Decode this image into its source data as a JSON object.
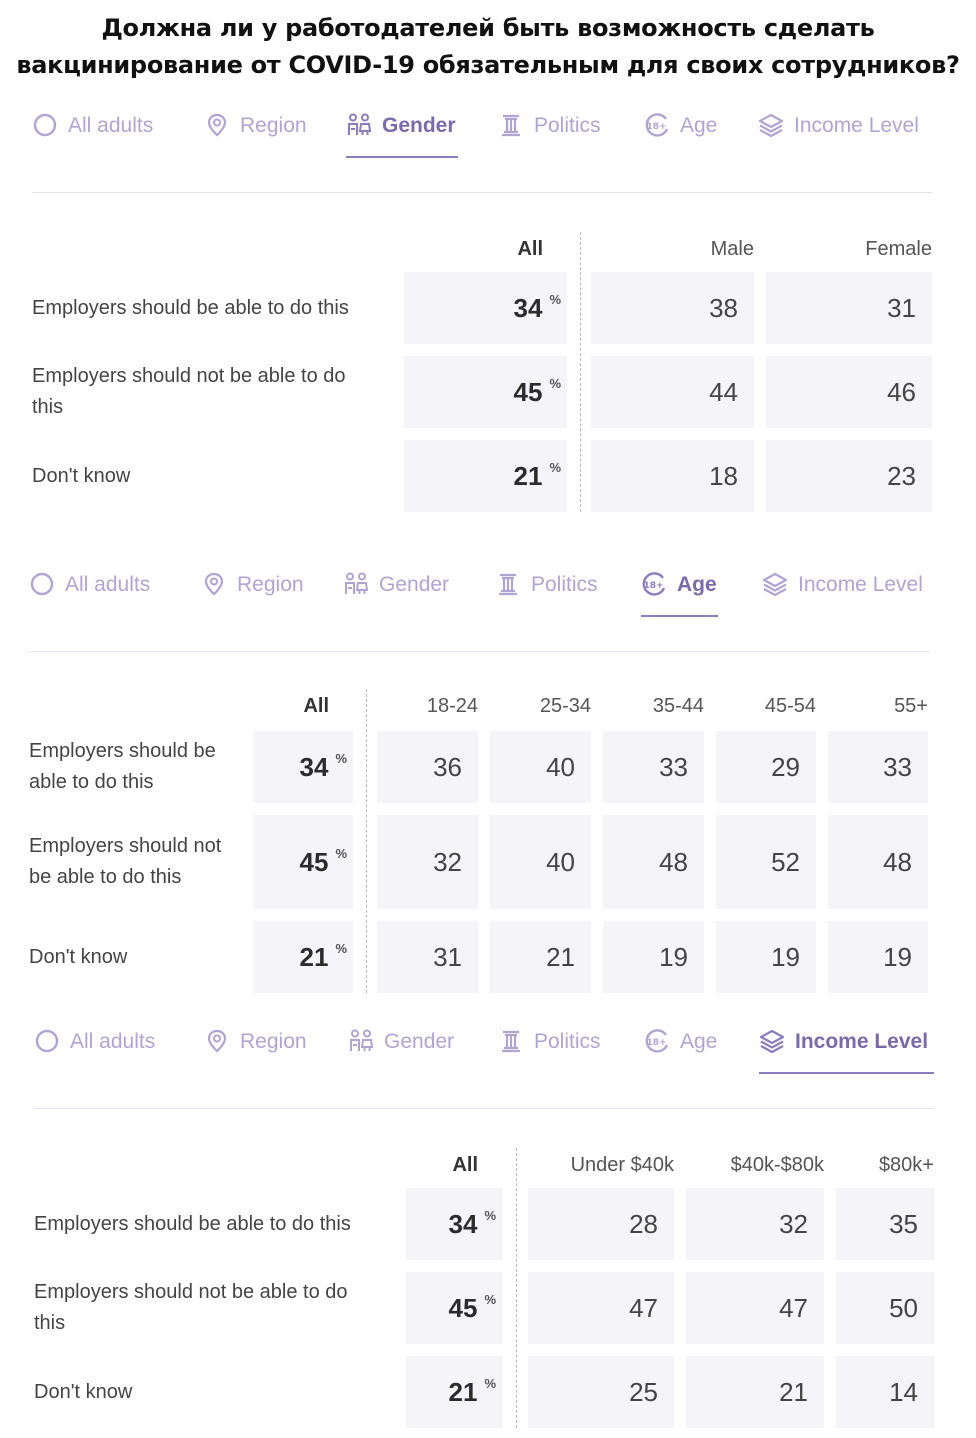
{
  "title_line1": "Должна ли у работодателей быть возможность сделать",
  "title_line2": "вакцинирование от COVID-19 обязательным для своих сотрудников?",
  "colors": {
    "accent": "#8b7cbd",
    "tab_inactive": "#b0a4d2",
    "cell_bg": "#f5f4f9"
  },
  "tabs": [
    {
      "label": "All adults",
      "icon": "circle-icon"
    },
    {
      "label": "Region",
      "icon": "location-pin-icon"
    },
    {
      "label": "Gender",
      "icon": "people-icon"
    },
    {
      "label": "Politics",
      "icon": "column-icon"
    },
    {
      "label": "Age",
      "icon": "age-18-icon"
    },
    {
      "label": "Income Level",
      "icon": "layers-icon"
    }
  ],
  "row_labels": {
    "able": "Employers should be able to do this",
    "not_able": "Employers should not be able to do this",
    "dont_know": "Don't know"
  },
  "all_label": "All",
  "percent_sign": "%",
  "chart_data": [
    {
      "type": "table",
      "active_tab": "Gender",
      "columns": [
        "All",
        "Male",
        "Female"
      ],
      "rows": [
        {
          "label": "Employers should be able to do this",
          "all": 34,
          "values": [
            38,
            31
          ]
        },
        {
          "label": "Employers should not be able to do this",
          "all": 45,
          "values": [
            44,
            46
          ]
        },
        {
          "label": "Don't know",
          "all": 21,
          "values": [
            18,
            23
          ]
        }
      ]
    },
    {
      "type": "table",
      "active_tab": "Age",
      "columns": [
        "All",
        "18-24",
        "25-34",
        "35-44",
        "45-54",
        "55+"
      ],
      "rows": [
        {
          "label": "Employers should be able to do this",
          "all": 34,
          "values": [
            36,
            40,
            33,
            29,
            33
          ]
        },
        {
          "label": "Employers should not be able to do this",
          "all": 45,
          "values": [
            32,
            40,
            48,
            52,
            48
          ]
        },
        {
          "label": "Don't know",
          "all": 21,
          "values": [
            31,
            21,
            19,
            19,
            19
          ]
        }
      ]
    },
    {
      "type": "table",
      "active_tab": "Income Level",
      "columns": [
        "All",
        "Under $40k",
        "$40k-$80k",
        "$80k+"
      ],
      "rows": [
        {
          "label": "Employers should be able to do this",
          "all": 34,
          "values": [
            28,
            32,
            35
          ]
        },
        {
          "label": "Employers should not be able to do this",
          "all": 45,
          "values": [
            47,
            47,
            50
          ]
        },
        {
          "label": "Don't know",
          "all": 21,
          "values": [
            25,
            21,
            14
          ]
        }
      ]
    }
  ]
}
